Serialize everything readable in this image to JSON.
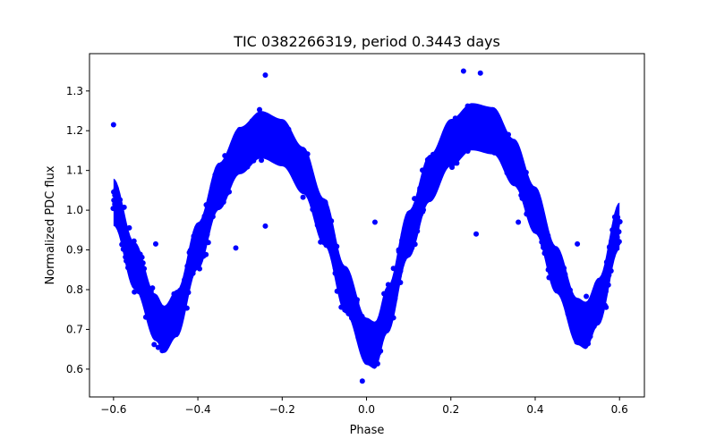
{
  "chart_data": {
    "type": "scatter",
    "title": "TIC 0382266319, period 0.3443 days",
    "xlabel": "Phase",
    "ylabel": "Normalized PDC flux",
    "xlim": [
      -0.657,
      0.659
    ],
    "ylim": [
      0.53,
      1.394
    ],
    "xticks": [
      -0.6,
      -0.4,
      -0.2,
      0.0,
      0.2,
      0.4,
      0.6
    ],
    "xtick_labels": [
      "−0.6",
      "−0.4",
      "−0.2",
      "0.0",
      "0.2",
      "0.4",
      "0.6"
    ],
    "yticks": [
      0.6,
      0.7,
      0.8,
      0.9,
      1.0,
      1.1,
      1.2,
      1.3
    ],
    "ytick_labels": [
      "0.6",
      "0.7",
      "0.8",
      "0.9",
      "1.0",
      "1.1",
      "1.2",
      "1.3"
    ],
    "grid": false,
    "marker_color": "#0000ff",
    "series": [
      {
        "name": "flux",
        "trend_phase": [
          -0.6,
          -0.55,
          -0.5,
          -0.48,
          -0.45,
          -0.4,
          -0.35,
          -0.3,
          -0.25,
          -0.2,
          -0.15,
          -0.1,
          -0.05,
          0.0,
          0.02,
          0.05,
          0.1,
          0.15,
          0.2,
          0.25,
          0.3,
          0.35,
          0.4,
          0.45,
          0.5,
          0.52,
          0.55,
          0.6
        ],
        "trend_flux": [
          1.02,
          0.86,
          0.73,
          0.7,
          0.74,
          0.91,
          1.06,
          1.15,
          1.19,
          1.17,
          1.1,
          0.97,
          0.8,
          0.67,
          0.66,
          0.75,
          0.94,
          1.08,
          1.17,
          1.21,
          1.2,
          1.12,
          1.0,
          0.85,
          0.72,
          0.71,
          0.77,
          0.96
        ],
        "scatter_halfwidth": 0.07
      }
    ],
    "outliers": [
      [
        -0.6,
        1.215
      ],
      [
        -0.24,
        1.34
      ],
      [
        0.23,
        1.35
      ],
      [
        0.27,
        1.345
      ],
      [
        -0.01,
        0.57
      ],
      [
        0.02,
        0.97
      ],
      [
        -0.31,
        0.905
      ],
      [
        0.26,
        0.94
      ],
      [
        -0.5,
        0.915
      ],
      [
        0.5,
        0.915
      ],
      [
        -0.24,
        0.96
      ],
      [
        0.36,
        0.97
      ]
    ]
  }
}
